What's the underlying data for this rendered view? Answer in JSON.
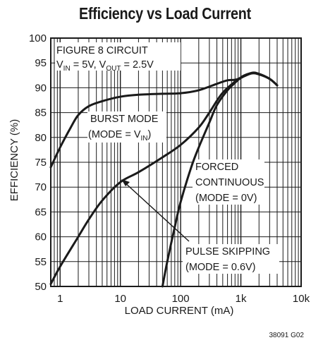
{
  "chart_data": {
    "type": "line",
    "title": "Efficiency vs Load Current",
    "xlabel": "LOAD CURRENT (mA)",
    "ylabel": "EFFICIENCY (%)",
    "xscale": "log",
    "xlim": [
      0.7,
      10000
    ],
    "ylim": [
      50,
      100
    ],
    "x_ticks": [
      1,
      10,
      100,
      1000,
      10000
    ],
    "x_tick_labels": [
      "1",
      "10",
      "100",
      "1k",
      "10k"
    ],
    "y_ticks": [
      50,
      55,
      60,
      65,
      70,
      75,
      80,
      85,
      90,
      95,
      100
    ],
    "grid": true,
    "series": [
      {
        "name": "BURST MODE (MODE = VIN)",
        "x": [
          0.7,
          1,
          1.5,
          2,
          3,
          5,
          10,
          20,
          50,
          100,
          200,
          400,
          600,
          800,
          1000,
          1500,
          2000,
          3000,
          4000
        ],
        "y": [
          74,
          78,
          82,
          84.5,
          86.3,
          87.3,
          88.2,
          88.6,
          88.8,
          88.9,
          89.5,
          90.8,
          91.5,
          91.6,
          92.0,
          92.9,
          92.7,
          91.8,
          90.5
        ]
      },
      {
        "name": "FORCED CONTINUOUS (MODE = 0V)",
        "x": [
          50,
          60,
          80,
          100,
          150,
          200,
          300,
          400,
          600,
          800,
          1000,
          1500,
          2000,
          3000,
          4000
        ],
        "y": [
          50,
          55,
          62,
          67,
          74,
          78,
          83,
          86.5,
          89.5,
          91,
          92,
          93,
          92.8,
          91.8,
          90.5
        ]
      },
      {
        "name": "PULSE SKIPPING (MODE = 0.6V)",
        "x": [
          0.7,
          1,
          2,
          3,
          5,
          10,
          20,
          50,
          100,
          200,
          300,
          500,
          1000,
          1500,
          2000,
          3000,
          4000
        ],
        "y": [
          50.5,
          54,
          60,
          63.5,
          67.3,
          71,
          73,
          76,
          78.5,
          82,
          85,
          89,
          92.1,
          92.9,
          92.7,
          91.8,
          90.5
        ]
      }
    ],
    "annotations": [
      {
        "id": "fig8",
        "lines": [
          "FIGURE 8 CIRCUIT",
          "V_IN = 5V, V_OUT = 2.5V"
        ]
      },
      {
        "id": "burst",
        "lines": [
          "BURST MODE",
          "(MODE = V_IN)"
        ]
      },
      {
        "id": "forced",
        "lines": [
          "FORCED",
          "CONTINUOUS",
          "(MODE = 0V)"
        ]
      },
      {
        "id": "pulse",
        "lines": [
          "PULSE SKIPPING",
          "(MODE = 0.6V)"
        ]
      }
    ],
    "annotation_text": {
      "fig8_line1": "FIGURE 8 CIRCUIT",
      "v": "V",
      "in_sub": "IN",
      "vin_eq": " = 5V, ",
      "out_sub": "OUT",
      "vout_eq": " = 2.5V",
      "burst_line1": "BURST MODE",
      "burst_line2_pre": "(MODE = V",
      "burst_line2_post": ")",
      "forced_line1": "FORCED",
      "forced_line2": "CONTINUOUS",
      "forced_line3": "(MODE = 0V)",
      "pulse_line1": "PULSE SKIPPING",
      "pulse_line2": "(MODE = 0.6V)"
    }
  },
  "figure_id": "38091 G02",
  "colors": {
    "line": "#1a1a1a",
    "grid": "#1a1a1a",
    "background": "#ffffff"
  }
}
